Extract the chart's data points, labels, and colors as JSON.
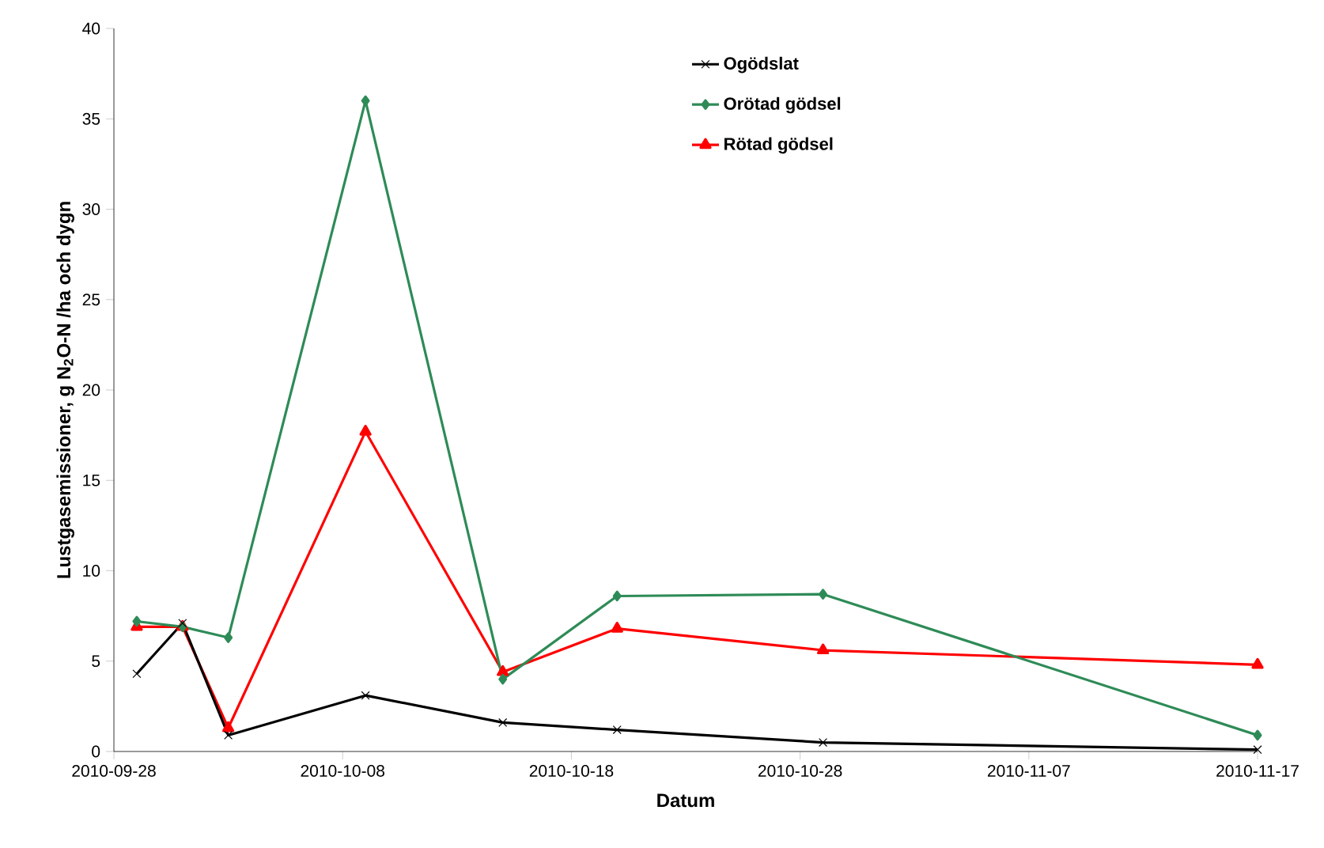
{
  "chart_data": {
    "type": "line",
    "xlabel": "Datum",
    "ylabel": "Lustgasemissioner, g N$_{2}$O-N /ha och dygn",
    "x": [
      "2010-09-29",
      "2010-10-01",
      "2010-10-03",
      "2010-10-09",
      "2010-10-15",
      "2010-10-20",
      "2010-10-29",
      "2010-11-17"
    ],
    "series": [
      {
        "name": "Ogödslat",
        "color": "#000000",
        "marker": "cross",
        "values": [
          4.3,
          7.1,
          0.9,
          3.1,
          1.6,
          1.2,
          0.5,
          0.1
        ]
      },
      {
        "name": "Orötad gödsel",
        "color": "#2e8b57",
        "marker": "diamond",
        "values": [
          7.2,
          6.9,
          6.3,
          36.0,
          4.0,
          8.6,
          8.7,
          0.9
        ]
      },
      {
        "name": "Rötad gödsel",
        "color": "#ff0000",
        "marker": "triangle",
        "values": [
          6.9,
          6.9,
          1.3,
          17.7,
          4.4,
          6.8,
          5.6,
          4.8
        ]
      }
    ],
    "xlim": [
      "2010-09-28",
      "2010-11-17"
    ],
    "xticks": [
      "2010-09-28",
      "2010-10-08",
      "2010-10-18",
      "2010-10-28",
      "2010-11-07",
      "2010-11-17"
    ],
    "ylim": [
      0,
      40
    ],
    "yticks": [
      0,
      5,
      10,
      15,
      20,
      25,
      30,
      35,
      40
    ],
    "grid": false,
    "legend": "top"
  }
}
